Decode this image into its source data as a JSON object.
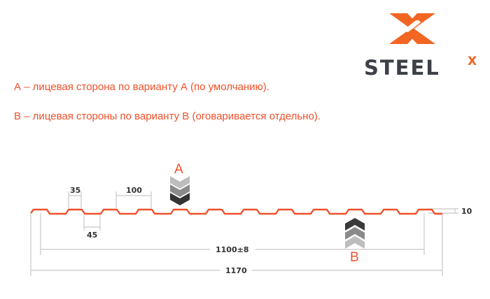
{
  "logo": {
    "text": "STEEL",
    "superscript": "X",
    "brand_color": "#f26522",
    "text_color": "#3c4046"
  },
  "description": {
    "line_a": "А – лицевая сторона по варианту А (по умолчанию).",
    "line_b": "В – лицевая стороны по варианту В (оговаривается отдельно)."
  },
  "diagram": {
    "profile_color": "#f0502a",
    "side_a_label": "A",
    "side_b_label": "B",
    "dimensions": {
      "rib_top": "35",
      "pitch": "100",
      "rib_bottom": "45",
      "height": "10",
      "useful_width": "1100±8",
      "total_width": "1170"
    }
  }
}
